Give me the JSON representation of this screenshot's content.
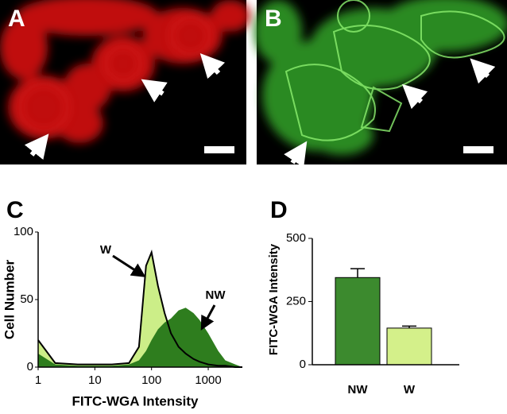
{
  "panels": {
    "a": "A",
    "b": "B"
  },
  "chart_data": [
    {
      "type": "area",
      "panel_label": "C",
      "xlabel": "FITC-WGA Intensity",
      "ylabel": "Cell Number",
      "xscale": "log",
      "x": [
        1,
        2,
        5,
        10,
        20,
        40,
        60,
        80,
        100,
        130,
        170,
        220,
        300,
        400,
        550,
        700,
        1000,
        1500,
        2000,
        3000,
        4000
      ],
      "series": [
        {
          "name": "W",
          "color": "#ccee88",
          "values": [
            20,
            3,
            2,
            2,
            2,
            3,
            15,
            75,
            85,
            60,
            40,
            25,
            15,
            10,
            6,
            4,
            2,
            1,
            1,
            0,
            0
          ]
        },
        {
          "name": "NW",
          "color": "#2e7d1e",
          "values": [
            10,
            2,
            1,
            1,
            1,
            2,
            5,
            12,
            20,
            28,
            33,
            36,
            42,
            44,
            40,
            35,
            25,
            12,
            5,
            2,
            0
          ]
        }
      ],
      "xlim": [
        1,
        4000
      ],
      "ylim": [
        0,
        100
      ],
      "xticks": [
        1,
        10,
        100,
        1000
      ],
      "yticks": [
        0,
        50,
        100
      ]
    },
    {
      "type": "bar",
      "panel_label": "D",
      "ylabel": "FITC-WGA Intensity",
      "categories": [
        "NW",
        "W"
      ],
      "values": [
        345,
        145
      ],
      "errors": [
        35,
        8
      ],
      "colors": [
        "#3c8a2e",
        "#d4f08a"
      ],
      "ylim": [
        0,
        500
      ],
      "yticks": [
        0,
        250,
        500
      ]
    }
  ]
}
